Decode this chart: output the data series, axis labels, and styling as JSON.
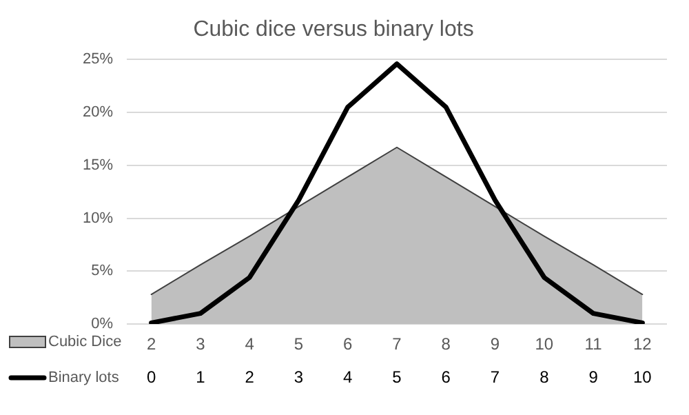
{
  "chart_data": {
    "type": "area",
    "title": "Cubic dice versus binary lots",
    "categories": [
      "2",
      "3",
      "4",
      "5",
      "6",
      "7",
      "8",
      "9",
      "10",
      "11",
      "12"
    ],
    "series": [
      {
        "name": "Cubic Dice",
        "color": "#bfbfbf",
        "values": [
          2.8,
          5.6,
          8.3,
          11.1,
          13.9,
          16.7,
          13.9,
          11.1,
          8.3,
          5.6,
          2.8
        ]
      },
      {
        "name": "Binary lots",
        "type": "line",
        "color": "#000000",
        "axis": "x2",
        "x": [
          0,
          1,
          2,
          3,
          4,
          5,
          6,
          7,
          8,
          9,
          10
        ],
        "values": [
          0.1,
          1,
          4.4,
          11.7,
          20.5,
          24.6,
          20.5,
          11.7,
          4.4,
          1,
          0.1
        ]
      }
    ],
    "x2lim": [
      -0.5,
      10.5
    ],
    "x2ticks": [
      0,
      1,
      2,
      3,
      4,
      5,
      6,
      7,
      8,
      9,
      10
    ],
    "ylim": [
      0,
      25
    ],
    "yticks": [
      {
        "value": 0,
        "label": "0%"
      },
      {
        "value": 5,
        "label": "5%"
      },
      {
        "value": 10,
        "label": "10%"
      },
      {
        "value": 15,
        "label": "15%"
      },
      {
        "value": 20,
        "label": "20%"
      },
      {
        "value": 25,
        "label": "25%"
      }
    ],
    "grid": "y",
    "legend": "bottom",
    "marker": "none"
  }
}
